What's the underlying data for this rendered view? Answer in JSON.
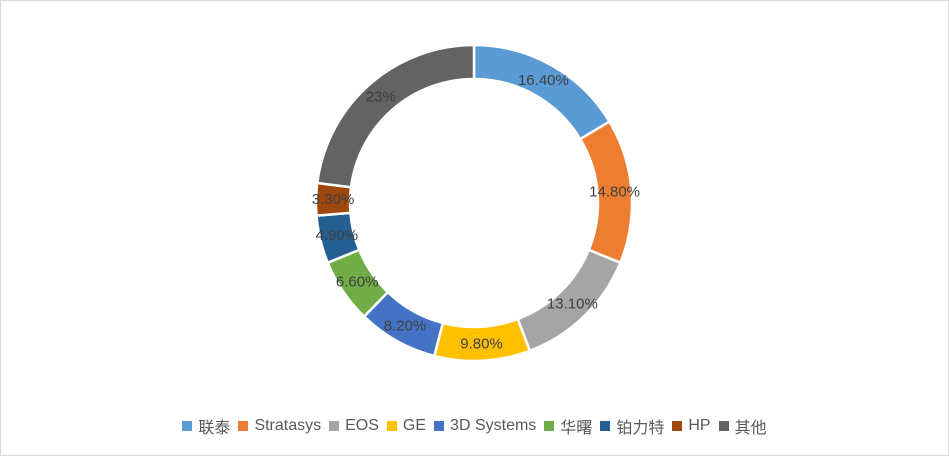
{
  "chart_data": {
    "type": "pie",
    "variant": "donut",
    "title": "",
    "legend_position": "bottom",
    "categories": [
      "联泰",
      "Stratasys",
      "EOS",
      "GE",
      "3D Systems",
      "华曙",
      "铂力特",
      "HP",
      "其他"
    ],
    "values": [
      16.4,
      14.8,
      13.1,
      9.8,
      8.2,
      6.6,
      4.9,
      3.3,
      23
    ],
    "labels": [
      "16.40%",
      "14.80%",
      "13.10%",
      "9.80%",
      "8.20%",
      "6.60%",
      "4.90%",
      "3.30%",
      "23%"
    ],
    "colors": [
      "#5b9bd5",
      "#ed7d31",
      "#a5a5a5",
      "#ffc000",
      "#4472c4",
      "#70ad47",
      "#255e91",
      "#9e480e",
      "#636363"
    ]
  }
}
